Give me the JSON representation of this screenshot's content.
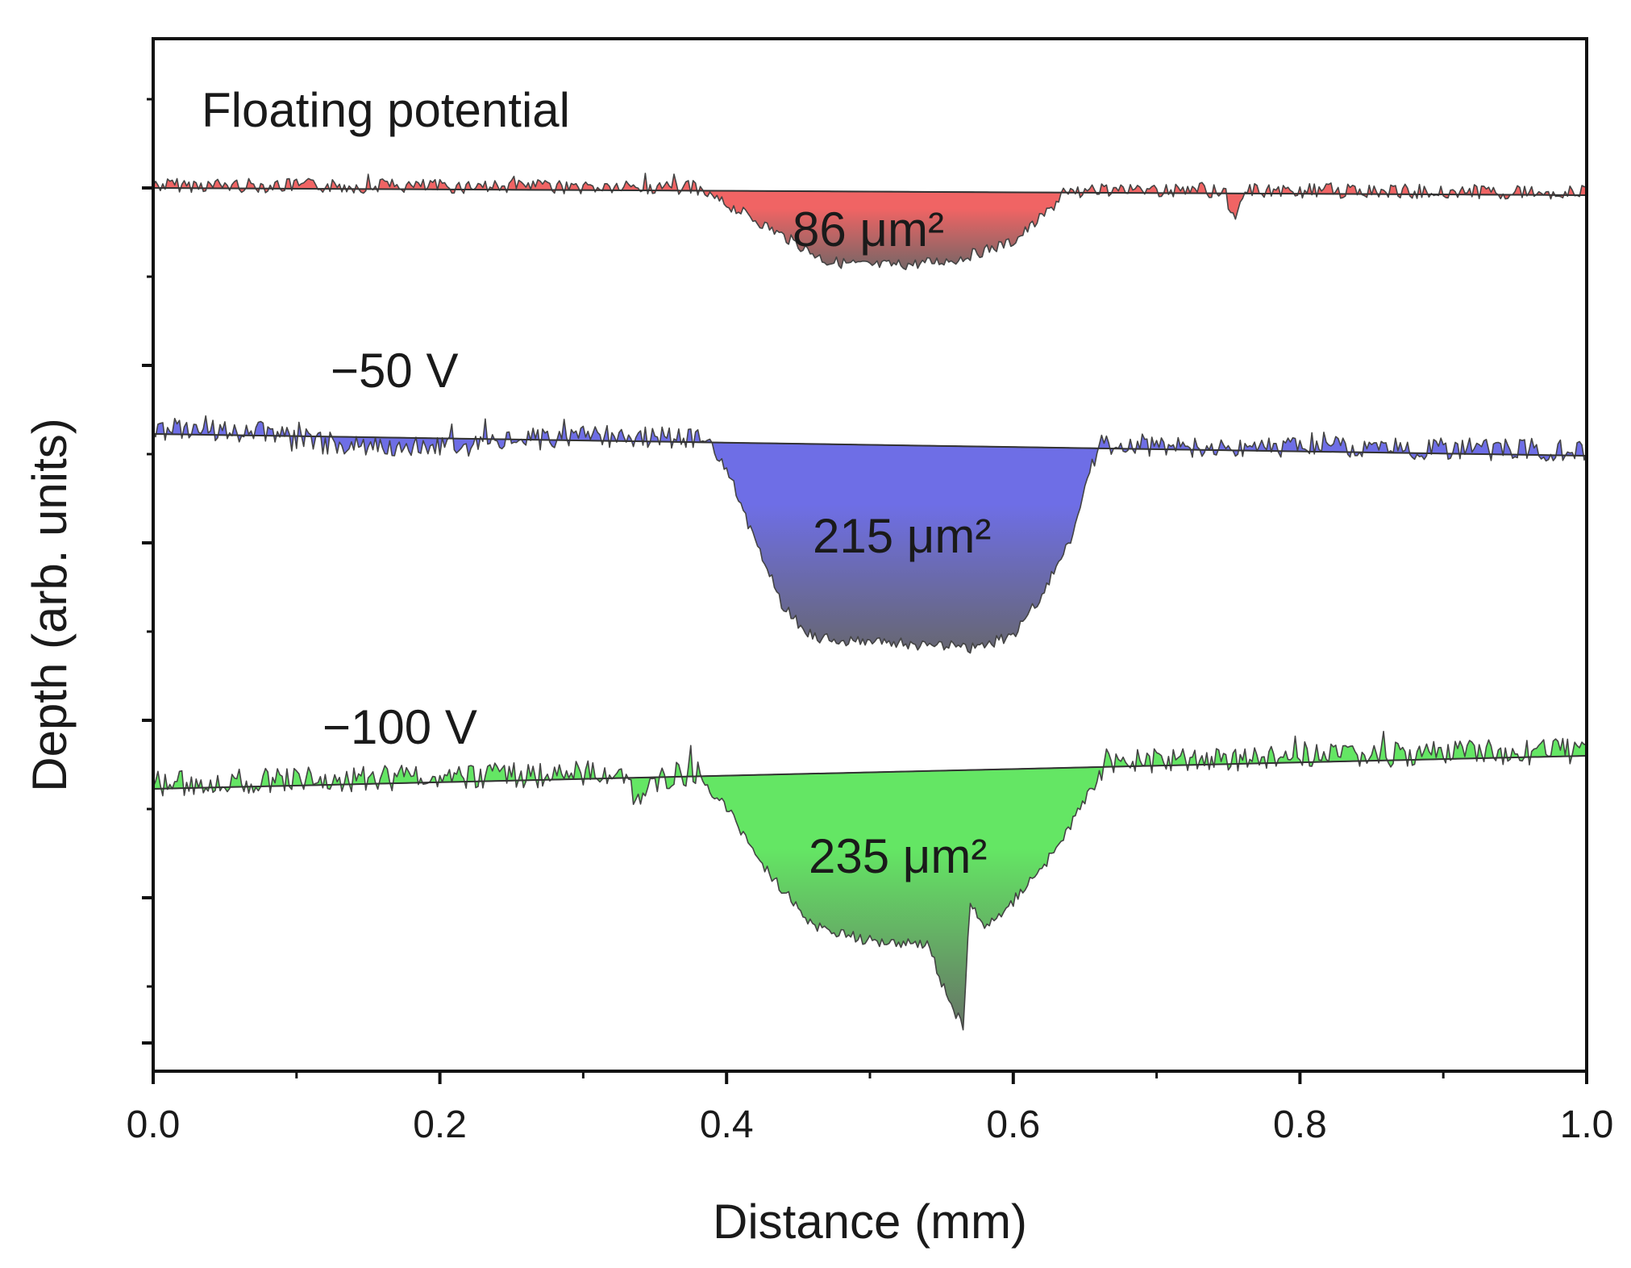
{
  "chart_data": {
    "type": "area",
    "title": "",
    "xlabel": "Distance (mm)",
    "ylabel": "Depth (arb. units)",
    "xlim": [
      0.0,
      1.0
    ],
    "x_ticks": [
      "0.0",
      "0.2",
      "0.4",
      "0.6",
      "0.8",
      "1.0"
    ],
    "y_ticks_labeled": false,
    "grid": false,
    "series": [
      {
        "name": "Floating potential",
        "label": "Floating potential",
        "area_label": "86 μm²",
        "area_value": 86,
        "area_unit": "μm²",
        "color": "#f06464",
        "dark_color": "#666666",
        "crater_x_range": [
          0.38,
          0.63
        ],
        "profile": [
          [
            0.0,
            0.0
          ],
          [
            0.1,
            0.0
          ],
          [
            0.2,
            0.0
          ],
          [
            0.3,
            0.0
          ],
          [
            0.37,
            0.0
          ],
          [
            0.38,
            0.0
          ],
          [
            0.41,
            -0.25
          ],
          [
            0.44,
            -0.55
          ],
          [
            0.47,
            -0.85
          ],
          [
            0.5,
            -0.9
          ],
          [
            0.53,
            -0.88
          ],
          [
            0.56,
            -0.82
          ],
          [
            0.6,
            -0.6
          ],
          [
            0.62,
            -0.3
          ],
          [
            0.635,
            -0.05
          ],
          [
            0.65,
            0.0
          ],
          [
            0.748,
            0.0
          ],
          [
            0.752,
            -0.32
          ],
          [
            0.757,
            -0.25
          ],
          [
            0.762,
            0.0
          ],
          [
            0.9,
            0.0
          ],
          [
            1.0,
            0.0
          ]
        ]
      },
      {
        "name": "-50 V",
        "label": "−50 V",
        "area_label": "215 μm²",
        "area_value": 215,
        "area_unit": "μm²",
        "color": "#6e6ee6",
        "dark_color": "#666666",
        "crater_x_range": [
          0.39,
          0.66
        ],
        "profile": [
          [
            0.0,
            0.0
          ],
          [
            0.08,
            0.0
          ],
          [
            0.1,
            -0.12
          ],
          [
            0.19,
            -0.18
          ],
          [
            0.3,
            0.0
          ],
          [
            0.38,
            0.0
          ],
          [
            0.4,
            -0.3
          ],
          [
            0.42,
            -1.2
          ],
          [
            0.44,
            -2.0
          ],
          [
            0.46,
            -2.35
          ],
          [
            0.5,
            -2.4
          ],
          [
            0.54,
            -2.42
          ],
          [
            0.57,
            -2.45
          ],
          [
            0.6,
            -2.3
          ],
          [
            0.62,
            -1.8
          ],
          [
            0.64,
            -1.1
          ],
          [
            0.655,
            -0.2
          ],
          [
            0.665,
            0.0
          ],
          [
            0.68,
            -0.05
          ],
          [
            0.8,
            0.0
          ],
          [
            1.0,
            0.0
          ]
        ]
      },
      {
        "name": "-100 V",
        "label": "−100 V",
        "area_label": "235 μm²",
        "area_value": 235,
        "area_unit": "μm²",
        "color": "#64e664",
        "dark_color": "#666666",
        "crater_x_range": [
          0.38,
          0.66
        ],
        "profile": [
          [
            0.0,
            0.0
          ],
          [
            0.1,
            0.0
          ],
          [
            0.2,
            0.0
          ],
          [
            0.33,
            0.0
          ],
          [
            0.338,
            -0.55
          ],
          [
            0.345,
            -0.1
          ],
          [
            0.38,
            0.0
          ],
          [
            0.4,
            -0.4
          ],
          [
            0.43,
            -1.2
          ],
          [
            0.46,
            -1.85
          ],
          [
            0.5,
            -2.05
          ],
          [
            0.54,
            -2.1
          ],
          [
            0.555,
            -2.8
          ],
          [
            0.565,
            -3.1
          ],
          [
            0.57,
            -1.6
          ],
          [
            0.58,
            -1.95
          ],
          [
            0.6,
            -1.6
          ],
          [
            0.63,
            -1.0
          ],
          [
            0.65,
            -0.4
          ],
          [
            0.665,
            0.0
          ],
          [
            0.7,
            0.0
          ],
          [
            1.0,
            0.0
          ]
        ]
      }
    ]
  }
}
